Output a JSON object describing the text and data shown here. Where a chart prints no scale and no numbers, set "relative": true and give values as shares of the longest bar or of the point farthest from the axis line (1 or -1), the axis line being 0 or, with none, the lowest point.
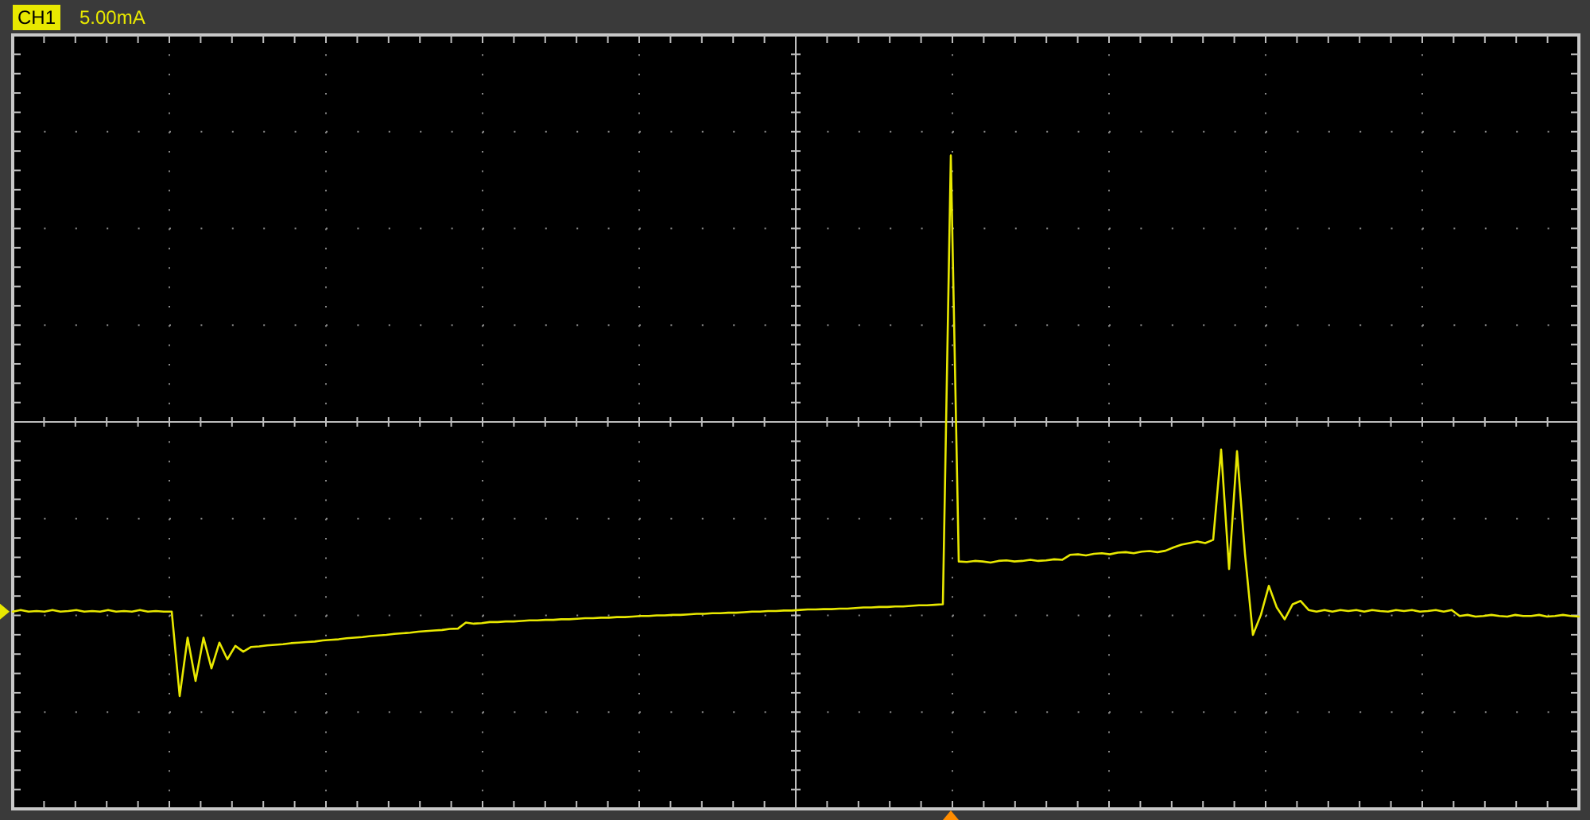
{
  "chart_data": {
    "type": "line",
    "relative": true,
    "grid": true,
    "annotations": [
      "CH1",
      "5.00mA"
    ],
    "categories": [
      null,
      null,
      null,
      null,
      null,
      null,
      null,
      null,
      null,
      null,
      null,
      null,
      null,
      null,
      null,
      null,
      null,
      null,
      null,
      null,
      null,
      null,
      null,
      null,
      null,
      null,
      null,
      null,
      null,
      null,
      null,
      null,
      null,
      null,
      null,
      null,
      null,
      null,
      null,
      null,
      null,
      null,
      null,
      null,
      null,
      null,
      null,
      null,
      null,
      null,
      null,
      null,
      null,
      null,
      null,
      null,
      null,
      null,
      null,
      null,
      null,
      null,
      null,
      null,
      null,
      null,
      null,
      null,
      null,
      null,
      null,
      null,
      null,
      null,
      null,
      null,
      null,
      null,
      null,
      null,
      null,
      null,
      null,
      null,
      null,
      null,
      null,
      null,
      null,
      null,
      null,
      null,
      null,
      null,
      null,
      null,
      null,
      null,
      null,
      null,
      null,
      null,
      null,
      null,
      null,
      null,
      null,
      null,
      null,
      null,
      null,
      null,
      null,
      null,
      null,
      null,
      null,
      null,
      null,
      null,
      null,
      null,
      null,
      null,
      null,
      null,
      null,
      null,
      null,
      null,
      null,
      null,
      null,
      null,
      null,
      null,
      null,
      null,
      null,
      null,
      null,
      null,
      null,
      null,
      null,
      null,
      null,
      null,
      null,
      null,
      null,
      null,
      null,
      null,
      null,
      null,
      null,
      null,
      null,
      null,
      null,
      null,
      null,
      null,
      null,
      null,
      null,
      null,
      null,
      null,
      null,
      null,
      null,
      null,
      null,
      null,
      null,
      null,
      null,
      null,
      null,
      null,
      null,
      null,
      null,
      null,
      null,
      null,
      null,
      null,
      null,
      null,
      null,
      null,
      null,
      null,
      null,
      null
    ],
    "series": [
      {
        "color": "#e8e800",
        "values": [
          -0.692,
          -0.686,
          -0.692,
          -0.69,
          -0.692,
          -0.686,
          -0.692,
          -0.69,
          -0.686,
          -0.692,
          -0.69,
          -0.692,
          -0.686,
          -0.692,
          -0.69,
          -0.692,
          -0.686,
          -0.692,
          -0.69,
          -0.692,
          -0.692,
          -1,
          -0.787,
          -0.945,
          -0.787,
          -0.899,
          -0.805,
          -0.866,
          -0.817,
          -0.838,
          -0.821,
          -0.819,
          -0.815,
          -0.813,
          -0.811,
          -0.807,
          -0.805,
          -0.803,
          -0.801,
          -0.797,
          -0.795,
          -0.793,
          -0.789,
          -0.787,
          -0.785,
          -0.781,
          -0.779,
          -0.777,
          -0.773,
          -0.771,
          -0.769,
          -0.765,
          -0.763,
          -0.761,
          -0.759,
          -0.755,
          -0.754,
          -0.732,
          -0.736,
          -0.734,
          -0.73,
          -0.73,
          -0.728,
          -0.728,
          -0.726,
          -0.724,
          -0.724,
          -0.722,
          -0.722,
          -0.72,
          -0.72,
          -0.718,
          -0.716,
          -0.716,
          -0.714,
          -0.714,
          -0.712,
          -0.712,
          -0.71,
          -0.708,
          -0.708,
          -0.706,
          -0.706,
          -0.704,
          -0.704,
          -0.702,
          -0.7,
          -0.7,
          -0.698,
          -0.698,
          -0.696,
          -0.696,
          -0.694,
          -0.692,
          -0.692,
          -0.69,
          -0.69,
          -0.688,
          -0.688,
          -0.686,
          -0.684,
          -0.684,
          -0.683,
          -0.683,
          -0.681,
          -0.681,
          -0.679,
          -0.677,
          -0.677,
          -0.675,
          -0.675,
          -0.673,
          -0.673,
          -0.671,
          -0.669,
          -0.669,
          -0.667,
          -0.665,
          0.972,
          -0.509,
          -0.511,
          -0.507,
          -0.509,
          -0.513,
          -0.507,
          -0.505,
          -0.509,
          -0.507,
          -0.503,
          -0.507,
          -0.505,
          -0.501,
          -0.503,
          -0.485,
          -0.483,
          -0.487,
          -0.481,
          -0.479,
          -0.483,
          -0.477,
          -0.475,
          -0.479,
          -0.473,
          -0.471,
          -0.475,
          -0.47,
          -0.458,
          -0.448,
          -0.442,
          -0.436,
          -0.442,
          -0.43,
          -0.101,
          -0.537,
          -0.107,
          -0.481,
          -0.777,
          -0.704,
          -0.598,
          -0.677,
          -0.72,
          -0.665,
          -0.653,
          -0.686,
          -0.692,
          -0.686,
          -0.692,
          -0.686,
          -0.69,
          -0.686,
          -0.692,
          -0.686,
          -0.69,
          -0.692,
          -0.686,
          -0.69,
          -0.686,
          -0.692,
          -0.69,
          -0.686,
          -0.692,
          -0.686,
          -0.708,
          -0.704,
          -0.71,
          -0.708,
          -0.704,
          -0.708,
          -0.71,
          -0.704,
          -0.708,
          -0.708,
          -0.704,
          -0.71,
          -0.708,
          -0.704,
          -0.708,
          -0.71
        ]
      }
    ]
  }
}
